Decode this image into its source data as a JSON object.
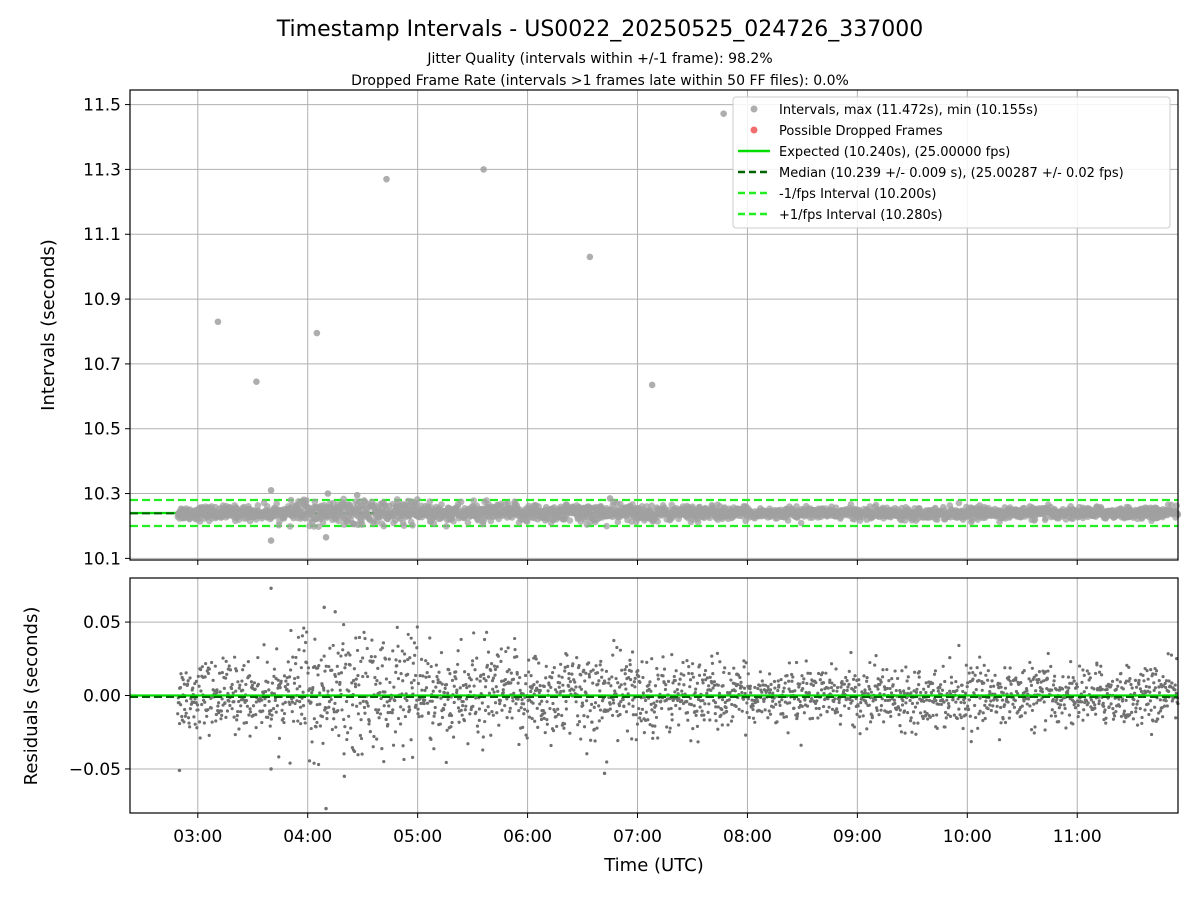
{
  "title": "Timestamp Intervals - US0022_20250525_024726_337000",
  "subtitle_1": "Jitter Quality (intervals within +/-1 frame): 98.2%",
  "subtitle_2": "Dropped Frame Rate (intervals >1 frames late within 50 FF files): 0.0%",
  "chart_data": [
    {
      "type": "scatter",
      "ylabel": "Intervals (seconds)",
      "xlim": [
        "02:23",
        "11:55"
      ],
      "ylim": [
        10.095,
        11.545
      ],
      "xticks": [
        "03:00",
        "04:00",
        "05:00",
        "06:00",
        "07:00",
        "08:00",
        "09:00",
        "10:00",
        "11:00"
      ],
      "yticks": [
        "10.1",
        "10.3",
        "10.5",
        "10.7",
        "10.9",
        "11.1",
        "11.3",
        "11.5"
      ],
      "grid": true,
      "legend_placement": "top-right",
      "legend": [
        {
          "label": "Intervals, max (11.472s), min (10.155s)",
          "kind": "marker",
          "color": "#a0a0a0"
        },
        {
          "label": "Possible Dropped Frames",
          "kind": "marker",
          "color": "#ee5555"
        },
        {
          "label": "Expected (10.240s), (25.00000 fps)",
          "kind": "line",
          "color": "#00dd00"
        },
        {
          "label": "Median (10.239 +/- 0.009 s), (25.00287 +/- 0.02 fps)",
          "kind": "dashed",
          "color": "#006400"
        },
        {
          "label": "-1/fps Interval (10.200s)",
          "kind": "dashed",
          "color": "#22ee22"
        },
        {
          "label": "+1/fps Interval (10.280s)",
          "kind": "dashed",
          "color": "#22ee22"
        }
      ],
      "reference_lines": {
        "expected": 10.24,
        "median": 10.239,
        "minus_1_fps": 10.2,
        "plus_1_fps": 10.28
      },
      "series_range": {
        "start": "02:49",
        "end": "11:55"
      },
      "outliers": [
        {
          "x": "03:11",
          "y": 10.83
        },
        {
          "x": "03:32",
          "y": 10.645
        },
        {
          "x": "04:05",
          "y": 10.795
        },
        {
          "x": "04:43",
          "y": 11.27
        },
        {
          "x": "05:36",
          "y": 11.3
        },
        {
          "x": "06:34",
          "y": 11.03
        },
        {
          "x": "07:08",
          "y": 10.635
        },
        {
          "x": "07:47",
          "y": 11.472
        },
        {
          "x": "03:40",
          "y": 10.155
        },
        {
          "x": "04:10",
          "y": 10.165
        },
        {
          "x": "03:40",
          "y": 10.31
        },
        {
          "x": "04:11",
          "y": 10.3
        },
        {
          "x": "04:27",
          "y": 10.295
        },
        {
          "x": "06:45",
          "y": 10.285
        }
      ]
    },
    {
      "type": "scatter",
      "xlabel": "Time (UTC)",
      "ylabel": "Residuals (seconds)",
      "xlim": [
        "02:23",
        "11:55"
      ],
      "ylim": [
        -0.08,
        0.08
      ],
      "xticks": [
        "03:00",
        "04:00",
        "05:00",
        "06:00",
        "07:00",
        "08:00",
        "09:00",
        "10:00",
        "11:00"
      ],
      "yticks": [
        "0.05",
        "0.00",
        "−0.05"
      ],
      "grid": true,
      "reference_lines": {
        "expected": 0.0,
        "median": -0.001
      },
      "outliers": [
        {
          "x": "03:40",
          "y": 0.073
        },
        {
          "x": "04:09",
          "y": 0.06
        },
        {
          "x": "04:15",
          "y": 0.057
        },
        {
          "x": "04:10",
          "y": -0.077
        },
        {
          "x": "02:50",
          "y": -0.051
        },
        {
          "x": "03:40",
          "y": -0.05
        },
        {
          "x": "04:20",
          "y": -0.055
        },
        {
          "x": "06:42",
          "y": -0.053
        }
      ]
    }
  ]
}
